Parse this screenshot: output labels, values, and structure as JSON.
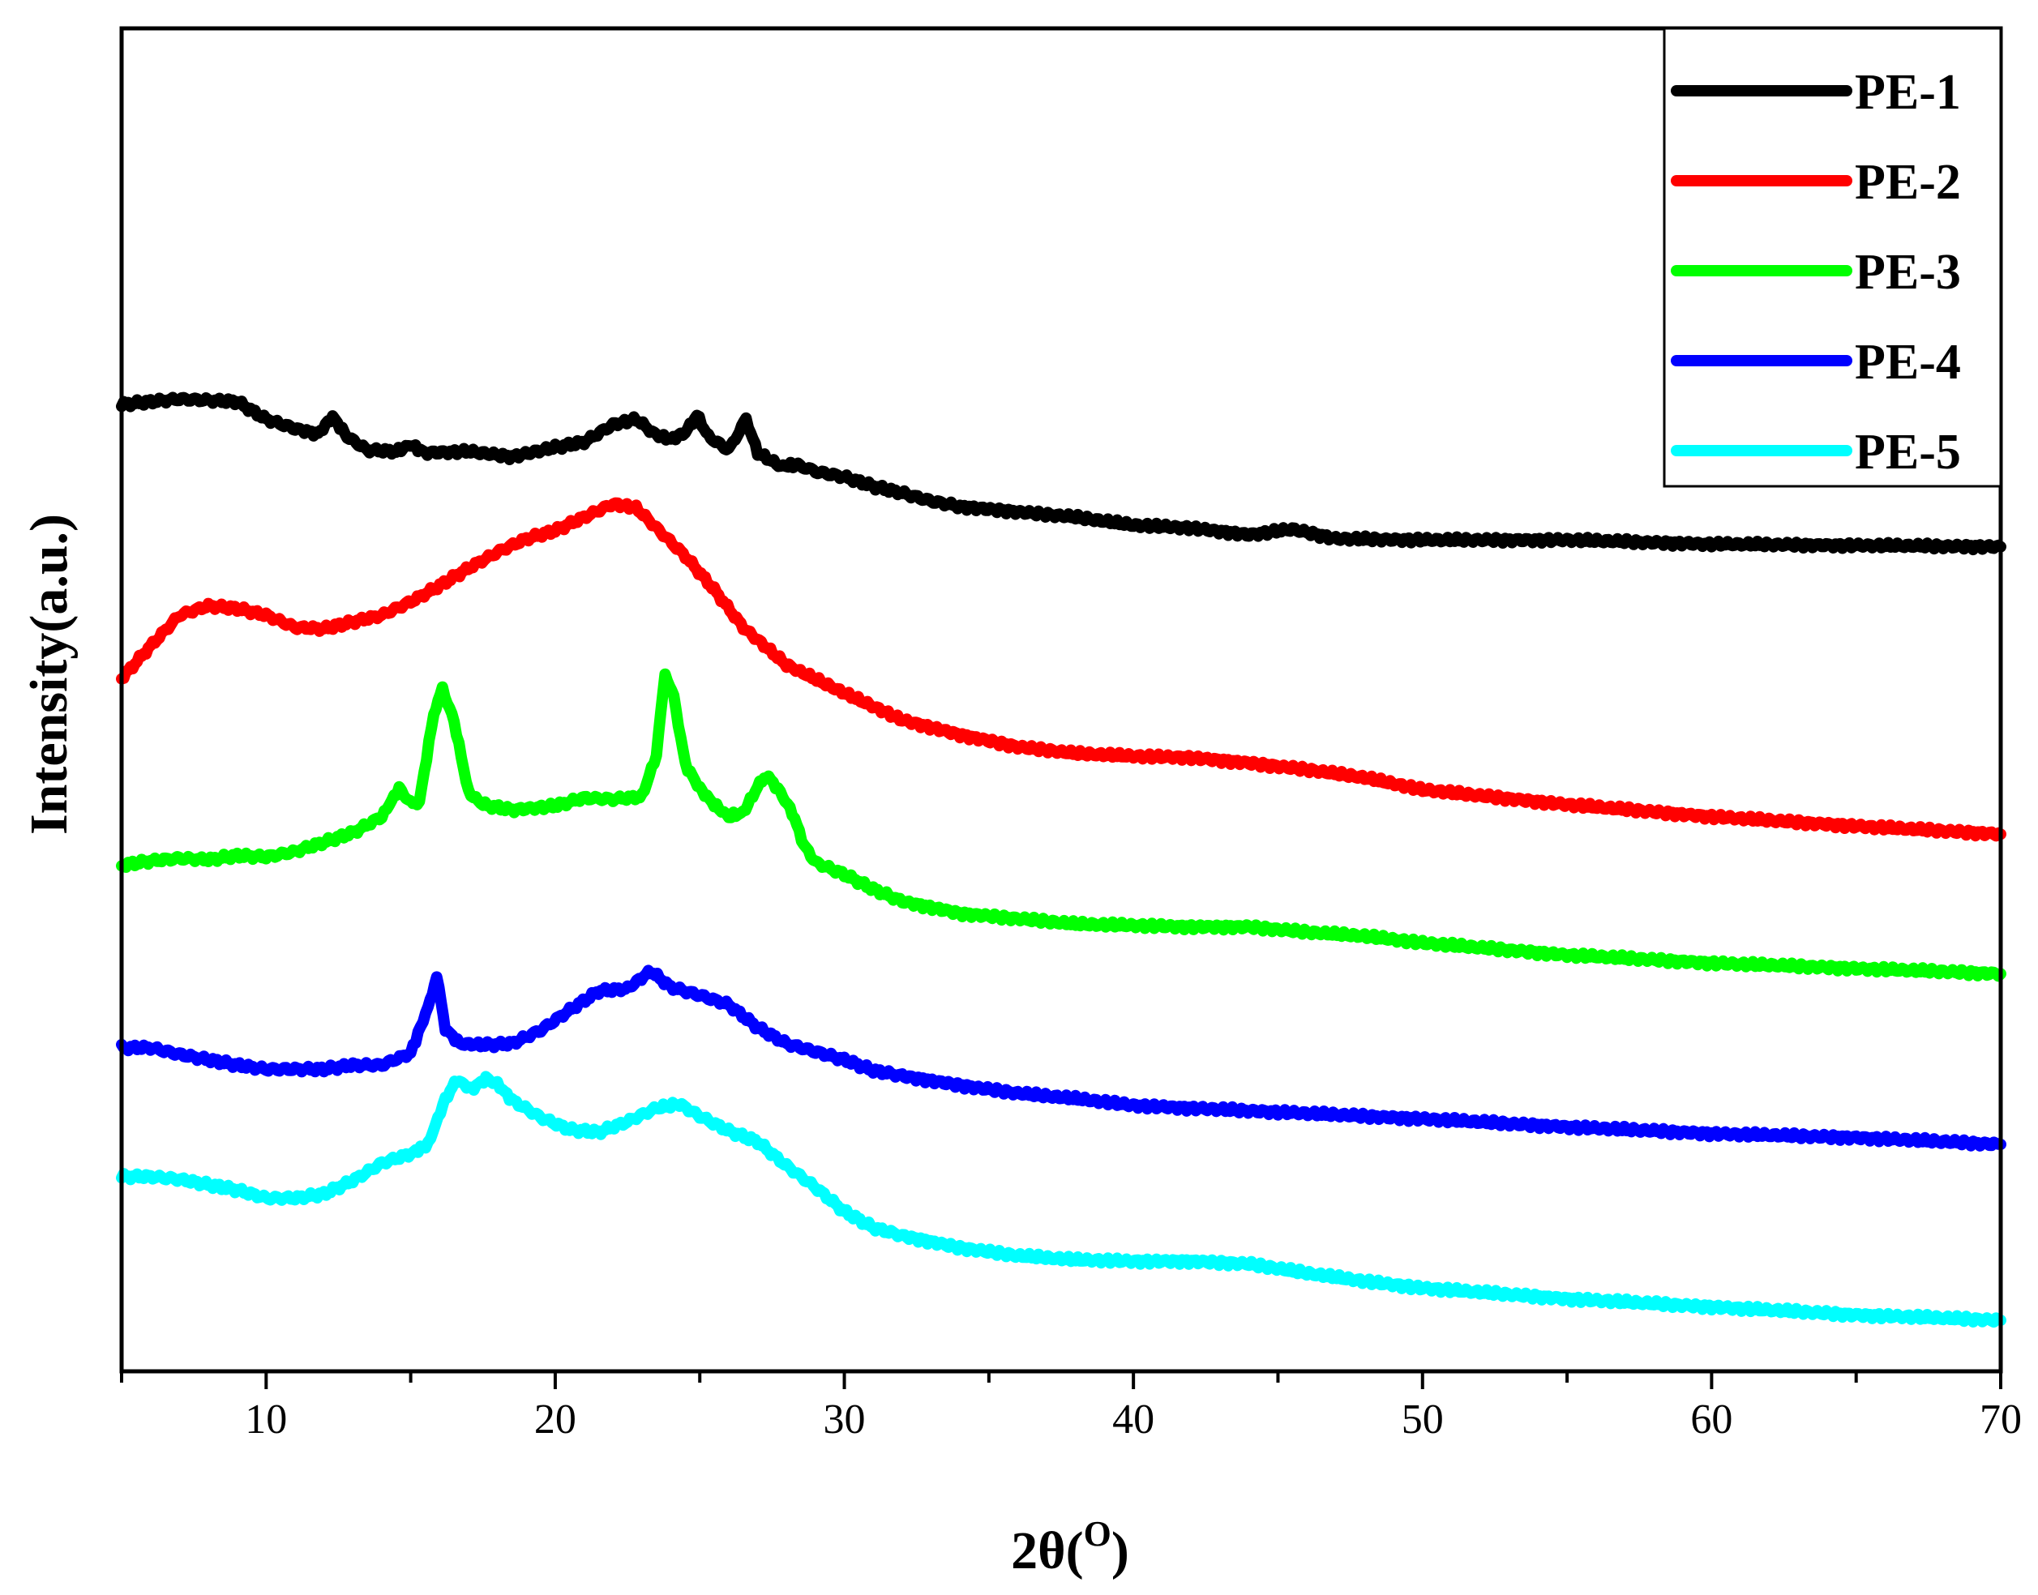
{
  "chart_data": {
    "type": "line",
    "title": "",
    "xlabel_main": "2θ(",
    "xlabel_sup": "O",
    "xlabel_close": ")",
    "ylabel": "Intensity(a.u.)",
    "xlim": [
      5,
      70
    ],
    "ylim": [
      0,
      100
    ],
    "y_ticks_labeled": false,
    "x_ticks": [
      10,
      20,
      30,
      40,
      50,
      60,
      70
    ],
    "x_tick_labels": [
      "10",
      "20",
      "30",
      "40",
      "50",
      "60",
      "70"
    ],
    "legend_position": "top-right",
    "series": [
      {
        "name": "PE-1",
        "color": "#000000",
        "points": [
          [
            5,
            72.0
          ],
          [
            6,
            72.2
          ],
          [
            7,
            72.4
          ],
          [
            8,
            72.3
          ],
          [
            9,
            72.2
          ],
          [
            10,
            70.9
          ],
          [
            11,
            70.2
          ],
          [
            11.8,
            69.8
          ],
          [
            12.3,
            71.1
          ],
          [
            12.8,
            69.6
          ],
          [
            13.5,
            68.6
          ],
          [
            14.5,
            68.5
          ],
          [
            15,
            69.0
          ],
          [
            15.5,
            68.4
          ],
          [
            17,
            68.5
          ],
          [
            18.5,
            68.1
          ],
          [
            20,
            68.8
          ],
          [
            21,
            69.2
          ],
          [
            22,
            70.5
          ],
          [
            22.8,
            70.9
          ],
          [
            23.5,
            69.7
          ],
          [
            24,
            69.4
          ],
          [
            24.5,
            69.9
          ],
          [
            24.9,
            71.2
          ],
          [
            25.3,
            69.6
          ],
          [
            26,
            68.6
          ],
          [
            26.6,
            70.9
          ],
          [
            27,
            68.4
          ],
          [
            27.8,
            67.4
          ],
          [
            28.4,
            67.5
          ],
          [
            29,
            67.0
          ],
          [
            30,
            66.6
          ],
          [
            31,
            65.9
          ],
          [
            32,
            65.4
          ],
          [
            33,
            64.8
          ],
          [
            34,
            64.4
          ],
          [
            36,
            64.0
          ],
          [
            38,
            63.6
          ],
          [
            40,
            63.0
          ],
          [
            42,
            62.8
          ],
          [
            44,
            62.3
          ],
          [
            45.5,
            62.7
          ],
          [
            47,
            62.0
          ],
          [
            50,
            61.9
          ],
          [
            55,
            61.9
          ],
          [
            60,
            61.6
          ],
          [
            65,
            61.5
          ],
          [
            70,
            61.4
          ]
        ]
      },
      {
        "name": "PE-2",
        "color": "#ff0000",
        "points": [
          [
            5,
            51.6
          ],
          [
            6,
            54.0
          ],
          [
            7,
            56.3
          ],
          [
            8,
            57.0
          ],
          [
            9,
            56.8
          ],
          [
            10,
            56.3
          ],
          [
            11,
            55.4
          ],
          [
            12,
            55.3
          ],
          [
            13,
            55.8
          ],
          [
            14,
            56.3
          ],
          [
            15,
            57.3
          ],
          [
            16,
            58.5
          ],
          [
            17,
            59.8
          ],
          [
            18,
            61.0
          ],
          [
            19,
            62.0
          ],
          [
            20,
            62.6
          ],
          [
            21,
            63.6
          ],
          [
            22,
            64.6
          ],
          [
            22.8,
            64.3
          ],
          [
            23.5,
            62.8
          ],
          [
            24.5,
            60.7
          ],
          [
            25.5,
            58.2
          ],
          [
            26.5,
            55.4
          ],
          [
            28,
            52.6
          ],
          [
            30,
            50.5
          ],
          [
            32,
            48.5
          ],
          [
            34,
            47.4
          ],
          [
            36,
            46.5
          ],
          [
            38,
            46.0
          ],
          [
            40,
            45.8
          ],
          [
            42,
            45.7
          ],
          [
            44,
            45.3
          ],
          [
            46,
            44.8
          ],
          [
            48,
            44.2
          ],
          [
            50,
            43.3
          ],
          [
            55,
            42.2
          ],
          [
            60,
            41.3
          ],
          [
            65,
            40.6
          ],
          [
            70,
            40.0
          ]
        ]
      },
      {
        "name": "PE-3",
        "color": "#00ff00",
        "points": [
          [
            5,
            37.7
          ],
          [
            6,
            38.0
          ],
          [
            7,
            38.2
          ],
          [
            8,
            38.1
          ],
          [
            9,
            38.4
          ],
          [
            10,
            38.3
          ],
          [
            11,
            38.7
          ],
          [
            12,
            39.4
          ],
          [
            13,
            40.1
          ],
          [
            14,
            41.3
          ],
          [
            14.6,
            43.4
          ],
          [
            15,
            42.3
          ],
          [
            15.3,
            42.4
          ],
          [
            15.8,
            49.0
          ],
          [
            16.1,
            50.8
          ],
          [
            16.5,
            48.4
          ],
          [
            17,
            43.1
          ],
          [
            17.5,
            42.2
          ],
          [
            18.5,
            41.8
          ],
          [
            20,
            42.1
          ],
          [
            21,
            42.7
          ],
          [
            22,
            42.6
          ],
          [
            23,
            42.8
          ],
          [
            23.5,
            45.9
          ],
          [
            23.8,
            52.0
          ],
          [
            24.1,
            50.2
          ],
          [
            24.5,
            45.2
          ],
          [
            25,
            43.4
          ],
          [
            25.5,
            42.2
          ],
          [
            26,
            41.3
          ],
          [
            26.5,
            41.6
          ],
          [
            27,
            43.5
          ],
          [
            27.3,
            44.4
          ],
          [
            27.7,
            43.4
          ],
          [
            28.2,
            41.6
          ],
          [
            28.6,
            39.2
          ],
          [
            29,
            37.9
          ],
          [
            30,
            37.0
          ],
          [
            31,
            35.9
          ],
          [
            32,
            35.0
          ],
          [
            34,
            34.1
          ],
          [
            36,
            33.7
          ],
          [
            38,
            33.3
          ],
          [
            40,
            33.2
          ],
          [
            42,
            33.1
          ],
          [
            44,
            33.1
          ],
          [
            46,
            32.7
          ],
          [
            48,
            32.4
          ],
          [
            50,
            31.9
          ],
          [
            55,
            31.0
          ],
          [
            60,
            30.4
          ],
          [
            65,
            30.0
          ],
          [
            70,
            29.6
          ]
        ]
      },
      {
        "name": "PE-4",
        "color": "#0000ff",
        "points": [
          [
            5,
            24.1
          ],
          [
            6,
            24.1
          ],
          [
            7,
            23.6
          ],
          [
            8,
            23.2
          ],
          [
            9,
            22.8
          ],
          [
            10,
            22.5
          ],
          [
            11,
            22.5
          ],
          [
            12,
            22.5
          ],
          [
            13,
            22.8
          ],
          [
            14,
            22.8
          ],
          [
            15,
            23.7
          ],
          [
            15.6,
            27.1
          ],
          [
            15.9,
            29.4
          ],
          [
            16.2,
            25.5
          ],
          [
            16.7,
            24.4
          ],
          [
            17.5,
            24.3
          ],
          [
            18.5,
            24.4
          ],
          [
            19.5,
            25.4
          ],
          [
            20.5,
            26.9
          ],
          [
            21.5,
            28.3
          ],
          [
            22.5,
            28.5
          ],
          [
            23.3,
            29.8
          ],
          [
            24,
            28.6
          ],
          [
            25,
            28.0
          ],
          [
            26,
            27.3
          ],
          [
            27,
            25.6
          ],
          [
            28,
            24.4
          ],
          [
            29,
            23.8
          ],
          [
            30,
            23.2
          ],
          [
            31,
            22.4
          ],
          [
            32,
            22.0
          ],
          [
            34,
            21.3
          ],
          [
            36,
            20.7
          ],
          [
            38,
            20.3
          ],
          [
            40,
            19.8
          ],
          [
            42,
            19.6
          ],
          [
            45,
            19.3
          ],
          [
            50,
            18.8
          ],
          [
            55,
            18.2
          ],
          [
            60,
            17.7
          ],
          [
            65,
            17.4
          ],
          [
            70,
            16.9
          ]
        ]
      },
      {
        "name": "PE-5",
        "color": "#00ffff",
        "points": [
          [
            5,
            14.5
          ],
          [
            6,
            14.5
          ],
          [
            7,
            14.3
          ],
          [
            8,
            13.9
          ],
          [
            9,
            13.5
          ],
          [
            10,
            12.9
          ],
          [
            11,
            12.9
          ],
          [
            12,
            13.2
          ],
          [
            13,
            14.2
          ],
          [
            14,
            15.5
          ],
          [
            15,
            16.2
          ],
          [
            15.6,
            16.9
          ],
          [
            16.2,
            20.3
          ],
          [
            16.6,
            21.7
          ],
          [
            17.1,
            21.0
          ],
          [
            17.6,
            21.8
          ],
          [
            18,
            21.4
          ],
          [
            18.5,
            20.2
          ],
          [
            19.5,
            18.9
          ],
          [
            20.5,
            18.0
          ],
          [
            21.5,
            17.8
          ],
          [
            22.5,
            18.6
          ],
          [
            23.5,
            19.6
          ],
          [
            24.3,
            19.9
          ],
          [
            25,
            19.0
          ],
          [
            26,
            17.9
          ],
          [
            27,
            17.1
          ],
          [
            28,
            15.3
          ],
          [
            29,
            13.7
          ],
          [
            30,
            11.9
          ],
          [
            31,
            10.7
          ],
          [
            32,
            10.1
          ],
          [
            34,
            9.2
          ],
          [
            36,
            8.6
          ],
          [
            38,
            8.3
          ],
          [
            40,
            8.2
          ],
          [
            42,
            8.2
          ],
          [
            44,
            8.0
          ],
          [
            46,
            7.3
          ],
          [
            48,
            6.7
          ],
          [
            50,
            6.2
          ],
          [
            55,
            5.4
          ],
          [
            60,
            4.8
          ],
          [
            65,
            4.2
          ],
          [
            70,
            3.8
          ]
        ]
      }
    ]
  }
}
